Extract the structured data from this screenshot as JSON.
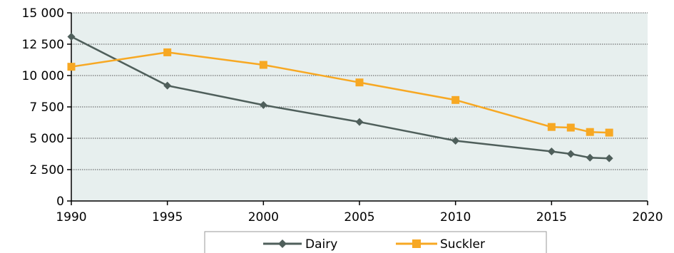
{
  "chart_data": {
    "type": "line",
    "title": "",
    "xlabel": "",
    "ylabel": "",
    "xlim": [
      1990,
      2020
    ],
    "ylim": [
      0,
      15000
    ],
    "x_ticks": [
      1990,
      1995,
      2000,
      2005,
      2010,
      2015,
      2020
    ],
    "x_tick_labels": [
      "1990",
      "1995",
      "2000",
      "2005",
      "2010",
      "2015",
      "2020"
    ],
    "y_ticks": [
      0,
      2500,
      5000,
      7500,
      10000,
      12500,
      15000
    ],
    "y_tick_labels": [
      "0",
      "2 500",
      "5 000",
      "7 500",
      "10 000",
      "12 500",
      "15 000"
    ],
    "grid": "horizontal dotted",
    "plot_background": "#e7efee",
    "legend_position": "bottom",
    "series": [
      {
        "name": "Dairy",
        "color": "#4f5f5b",
        "marker": "diamond",
        "x": [
          1990,
          1995,
          2000,
          2005,
          2010,
          2015,
          2016,
          2017,
          2018
        ],
        "values": [
          13100,
          9200,
          7650,
          6300,
          4800,
          3950,
          3750,
          3450,
          3400
        ]
      },
      {
        "name": "Suckler",
        "color": "#f7a823",
        "marker": "square",
        "x": [
          1990,
          1995,
          2000,
          2005,
          2010,
          2015,
          2016,
          2017,
          2018
        ],
        "values": [
          10700,
          11850,
          10850,
          9450,
          8050,
          5900,
          5850,
          5500,
          5450
        ]
      }
    ]
  }
}
